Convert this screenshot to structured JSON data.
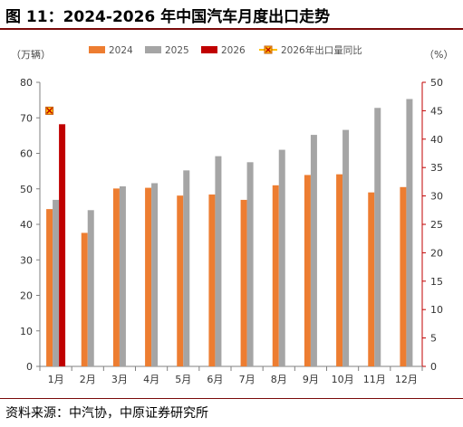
{
  "title": "图 11：2024-2026 年中国汽车月度出口走势",
  "source": "资料来源：中汽协，中原证券研究所",
  "chart_data": {
    "type": "bar",
    "categories": [
      "1月",
      "2月",
      "3月",
      "4月",
      "5月",
      "6月",
      "7月",
      "8月",
      "9月",
      "10月",
      "11月",
      "12月"
    ],
    "series": [
      {
        "name": "2024",
        "axis": "left",
        "color": "#ed7d31",
        "values": [
          44.3,
          37.6,
          50.1,
          50.3,
          48.1,
          48.4,
          46.9,
          51.0,
          53.9,
          54.1,
          49.0,
          50.5
        ]
      },
      {
        "name": "2025",
        "axis": "left",
        "color": "#a5a5a5",
        "values": [
          46.9,
          44.0,
          50.7,
          51.6,
          55.2,
          59.2,
          57.5,
          61.0,
          65.2,
          66.6,
          72.8,
          75.3
        ]
      },
      {
        "name": "2026",
        "axis": "left",
        "color": "#c00000",
        "values": [
          68.2,
          null,
          null,
          null,
          null,
          null,
          null,
          null,
          null,
          null,
          null,
          null
        ]
      },
      {
        "name": "2026年出口量同比",
        "axis": "right",
        "type": "scatter",
        "color": "#ffc000",
        "values": [
          45.0,
          null,
          null,
          null,
          null,
          null,
          null,
          null,
          null,
          null,
          null,
          null
        ]
      }
    ],
    "ylabel_left": "（万辆）",
    "ylabel_right": "（%）",
    "ylim_left": [
      0,
      80
    ],
    "yticks_left": [
      0,
      10,
      20,
      30,
      40,
      50,
      60,
      70,
      80
    ],
    "ylim_right": [
      0,
      50
    ],
    "yticks_right": [
      0,
      5,
      10,
      15,
      20,
      25,
      30,
      35,
      40,
      45,
      50
    ],
    "grid": false,
    "legend": "top"
  }
}
